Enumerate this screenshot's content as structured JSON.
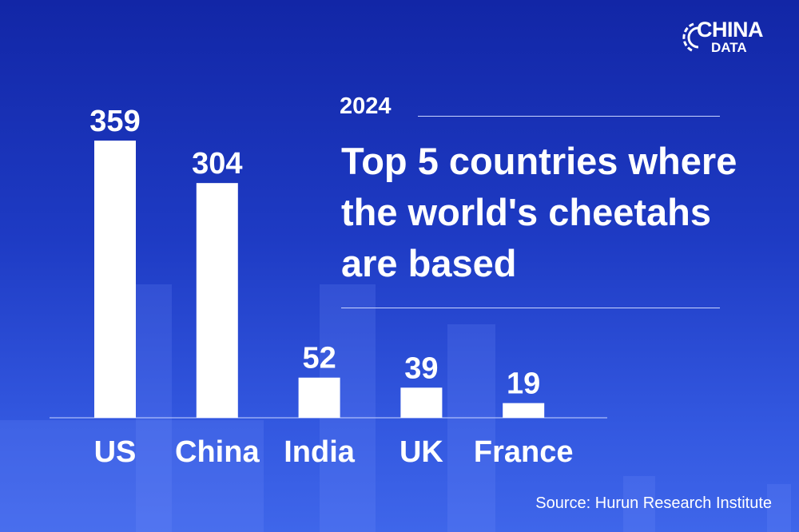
{
  "logo": {
    "text": "CHINA",
    "subtext": "DATA"
  },
  "header": {
    "year": "2024",
    "title": "Top 5 countries where the world's cheetahs are based"
  },
  "source": "Source: Hurun Research Institute",
  "colors": {
    "bar": "#ffffff",
    "background": "#1e3bc4"
  },
  "chart_data": {
    "type": "bar",
    "title": "Top 5 countries where the world's cheetahs are based",
    "categories": [
      "US",
      "China",
      "India",
      "UK",
      "France"
    ],
    "values": [
      359,
      304,
      52,
      39,
      19
    ],
    "ylim": [
      0,
      359
    ],
    "xlabel": "",
    "ylabel": "",
    "grid": false
  }
}
